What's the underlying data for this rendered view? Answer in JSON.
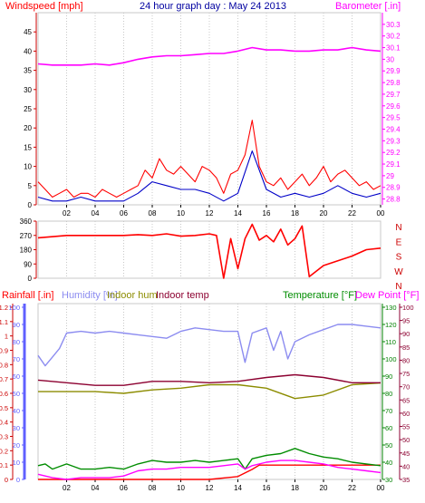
{
  "title": "24 hour graph day : May 24 2013",
  "x_ticks": [
    "02",
    "04",
    "06",
    "08",
    "10",
    "12",
    "14",
    "16",
    "18",
    "20",
    "22",
    "00"
  ],
  "colors": {
    "windspeed": "#ff0000",
    "windavg": "#0000c8",
    "barometer": "#ff00ff",
    "direction": "#ff0000",
    "rainfall": "#ff0000",
    "humidity": "#8c8cf0",
    "indoor_hum": "#8c8c00",
    "indoor_temp": "#8c0030",
    "temperature": "#008c00",
    "dewpoint": "#ff00ff",
    "tick_blue": "#6060ff",
    "tick_green": "#008000",
    "tick_red": "#cc0000",
    "grid": "#c8c8c8"
  },
  "chart_data": [
    {
      "type": "line",
      "name": "wind-barometer",
      "left_axis_label": "Windspeed [mph]",
      "right_axis_label": "Barometer [.in]",
      "left_ticks": [
        "0",
        "5",
        "10",
        "15",
        "20",
        "25",
        "30",
        "35",
        "40",
        "45"
      ],
      "right_ticks": [
        "28.8",
        "28.9",
        "29",
        "29.1",
        "29.2",
        "29.3",
        "29.4",
        "29.5",
        "29.6",
        "29.7",
        "29.8",
        "29.9",
        "30",
        "30.1",
        "30.2",
        "30.3"
      ],
      "ylim_left": [
        0,
        50
      ],
      "ylim_right": [
        28.75,
        30.4
      ],
      "series": [
        {
          "key": "windspeed",
          "x": [
            0,
            0.5,
            1,
            1.5,
            2,
            2.5,
            3,
            3.5,
            4,
            4.5,
            5,
            5.5,
            6,
            6.5,
            7,
            7.5,
            8,
            8.5,
            9,
            9.5,
            10,
            10.5,
            11,
            11.5,
            12,
            12.5,
            13,
            13.5,
            14,
            14.5,
            15,
            15.5,
            16,
            16.5,
            17,
            17.5,
            18,
            18.5,
            19,
            19.5,
            20,
            20.5,
            21,
            21.5,
            22,
            22.5,
            23,
            23.5,
            24
          ],
          "values": [
            6,
            4,
            2,
            3,
            4,
            2,
            3,
            3,
            2,
            4,
            3,
            2,
            3,
            4,
            5,
            9,
            7,
            12,
            9,
            8,
            10,
            8,
            6,
            10,
            9,
            7,
            3,
            8,
            9,
            13,
            22,
            10,
            6,
            5,
            7,
            4,
            6,
            8,
            5,
            7,
            10,
            6,
            8,
            9,
            7,
            5,
            6,
            4,
            5
          ]
        },
        {
          "key": "windavg",
          "x": [
            0,
            1,
            2,
            3,
            4,
            5,
            6,
            7,
            8,
            9,
            10,
            11,
            12,
            13,
            14,
            15,
            16,
            17,
            18,
            19,
            20,
            21,
            22,
            23,
            24
          ],
          "values": [
            2,
            1,
            1,
            2,
            1,
            1,
            1,
            3,
            6,
            5,
            4,
            4,
            3,
            1,
            3,
            14,
            4,
            2,
            3,
            2,
            3,
            5,
            3,
            2,
            3
          ]
        },
        {
          "key": "barometer",
          "x": [
            0,
            1,
            2,
            3,
            4,
            5,
            6,
            7,
            8,
            9,
            10,
            11,
            12,
            13,
            14,
            15,
            16,
            17,
            18,
            19,
            20,
            21,
            22,
            23,
            24
          ],
          "values": [
            29.96,
            29.95,
            29.95,
            29.95,
            29.96,
            29.95,
            29.97,
            30.0,
            30.02,
            30.03,
            30.03,
            30.04,
            30.05,
            30.05,
            30.07,
            30.1,
            30.08,
            30.08,
            30.07,
            30.07,
            30.08,
            30.08,
            30.1,
            30.08,
            30.07
          ]
        }
      ]
    },
    {
      "type": "line",
      "name": "wind-direction",
      "left_ticks": [
        "0",
        "90",
        "180",
        "270",
        "360"
      ],
      "right_ticks": [
        "N",
        "W",
        "S",
        "E",
        "N"
      ],
      "ylim": [
        0,
        360
      ],
      "series": [
        {
          "key": "direction",
          "x": [
            0,
            2,
            4,
            6,
            7,
            8,
            9,
            10,
            11,
            12,
            12.5,
            13,
            13.5,
            14,
            14.5,
            15,
            15.5,
            16,
            16.5,
            17,
            17.5,
            18,
            18.5,
            19,
            20,
            21,
            22,
            23,
            24
          ],
          "values": [
            255,
            270,
            270,
            270,
            275,
            270,
            280,
            265,
            270,
            280,
            270,
            0,
            250,
            60,
            250,
            340,
            240,
            270,
            230,
            310,
            210,
            250,
            330,
            10,
            80,
            110,
            140,
            180,
            190
          ]
        }
      ]
    },
    {
      "type": "line",
      "name": "weather-multi",
      "labels": {
        "rainfall": "Rainfall [.in]",
        "humidity": "Humidity [%]",
        "indoor_hum": "Indoor hum",
        "indoor_temp": "Indoor temp",
        "temperature": "Temperature [°F]",
        "dewpoint": "Dew Point [°F]"
      },
      "rain_ticks": [
        "0",
        "0.1",
        "0.2",
        "0.3",
        "0.4",
        "0.5",
        "0.6",
        "0.7",
        "0.8",
        "0.9",
        "1",
        "1.1",
        "1.2"
      ],
      "hum_ticks": [
        "0",
        "10",
        "20",
        "30",
        "40",
        "50",
        "60",
        "70",
        "80",
        "90",
        "100"
      ],
      "indoor_ticks": [
        "35",
        "40",
        "45",
        "50",
        "55",
        "60",
        "65",
        "70",
        "75",
        "80",
        "85",
        "90",
        "95",
        "100"
      ],
      "outdoor_ticks": [
        "30",
        "40",
        "50",
        "60",
        "70",
        "80",
        "90",
        "100",
        "110",
        "120",
        "130"
      ],
      "series": [
        {
          "key": "rainfall",
          "axis": "rain",
          "x": [
            0,
            2,
            4,
            6,
            8,
            10,
            12,
            14,
            15,
            15.5,
            16,
            18,
            20,
            22,
            24
          ],
          "values": [
            0,
            0,
            0,
            0,
            0,
            0,
            0,
            0.02,
            0.07,
            0.1,
            0.1,
            0.1,
            0.1,
            0.1,
            0.1
          ]
        },
        {
          "key": "humidity",
          "axis": "hum",
          "x": [
            0,
            0.5,
            1,
            1.5,
            2,
            3,
            4,
            5,
            6,
            7,
            8,
            9,
            10,
            11,
            12,
            13,
            14,
            14.5,
            15,
            16,
            16.5,
            17,
            17.5,
            18,
            19,
            20,
            21,
            22,
            23,
            24
          ],
          "values": [
            72,
            66,
            71,
            76,
            85,
            86,
            85,
            86,
            85,
            84,
            83,
            82,
            86,
            88,
            87,
            86,
            86,
            68,
            85,
            88,
            75,
            86,
            70,
            80,
            84,
            87,
            90,
            90,
            89,
            88
          ]
        },
        {
          "key": "indoor_hum",
          "axis": "hum",
          "x": [
            0,
            2,
            4,
            6,
            8,
            10,
            12,
            14,
            16,
            18,
            20,
            22,
            24
          ],
          "values": [
            51,
            51,
            51,
            50,
            52,
            53,
            55,
            55,
            53,
            47,
            49,
            55,
            56
          ]
        },
        {
          "key": "indoor_temp",
          "axis": "indoor",
          "x": [
            0,
            2,
            4,
            6,
            8,
            10,
            12,
            14,
            16,
            18,
            20,
            22,
            24
          ],
          "values": [
            72.5,
            71.5,
            70.5,
            70.5,
            72,
            72,
            71.5,
            72,
            73.5,
            74.5,
            73.5,
            71.5,
            71.5
          ]
        },
        {
          "key": "temperature",
          "axis": "outdoor",
          "x": [
            0,
            0.5,
            1,
            2,
            3,
            4,
            5,
            6,
            7,
            8,
            9,
            10,
            11,
            12,
            13,
            14,
            14.5,
            15,
            16,
            17,
            18,
            19,
            20,
            21,
            22,
            23,
            24
          ],
          "values": [
            38,
            39,
            36,
            39,
            36,
            36,
            37,
            36,
            39,
            41,
            40,
            40,
            41,
            40,
            41,
            42,
            36,
            42,
            44,
            45,
            48,
            45,
            43,
            42,
            40,
            39,
            38
          ]
        },
        {
          "key": "dewpoint",
          "axis": "outdoor",
          "x": [
            0,
            1,
            2,
            3,
            4,
            5,
            6,
            7,
            8,
            9,
            10,
            11,
            12,
            13,
            14,
            14.5,
            15,
            16,
            17,
            18,
            19,
            20,
            21,
            22,
            23,
            24
          ],
          "values": [
            33,
            31,
            30,
            31,
            31,
            31,
            32,
            35,
            36,
            36,
            37,
            37,
            37,
            38,
            39,
            36,
            38,
            40,
            41,
            41,
            40,
            39,
            37,
            36,
            35,
            34
          ]
        }
      ]
    }
  ]
}
